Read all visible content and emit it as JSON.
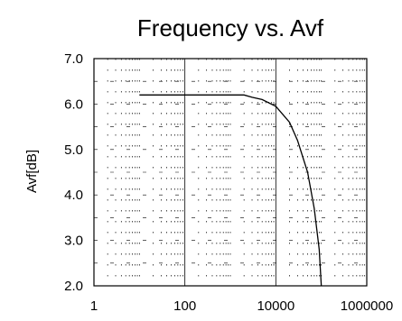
{
  "chart_data": {
    "type": "line",
    "title": "Frequency vs. Avf",
    "xlabel": "",
    "ylabel": "Avf[dB]",
    "x_scale": "log",
    "xlim": [
      1,
      1000000
    ],
    "ylim": [
      2.0,
      7.0
    ],
    "x_ticks": [
      1,
      100,
      10000,
      1000000
    ],
    "x_tick_labels": [
      "1",
      "100",
      "10000",
      "1000000"
    ],
    "y_ticks": [
      2.0,
      3.0,
      4.0,
      5.0,
      6.0,
      7.0
    ],
    "y_tick_labels": [
      "2.0",
      "3.0",
      "4.0",
      "5.0",
      "6.0",
      "7.0"
    ],
    "grid": true,
    "legend": "none",
    "line_color": "#000000",
    "series": [
      {
        "x": [
          10,
          100,
          1000,
          2000,
          3000,
          5000,
          10000,
          20000,
          30000,
          50000,
          70000,
          90000,
          100000
        ],
        "values": [
          6.2,
          6.2,
          6.2,
          6.2,
          6.15,
          6.1,
          5.95,
          5.6,
          5.2,
          4.5,
          3.7,
          2.8,
          2.0
        ]
      }
    ]
  }
}
